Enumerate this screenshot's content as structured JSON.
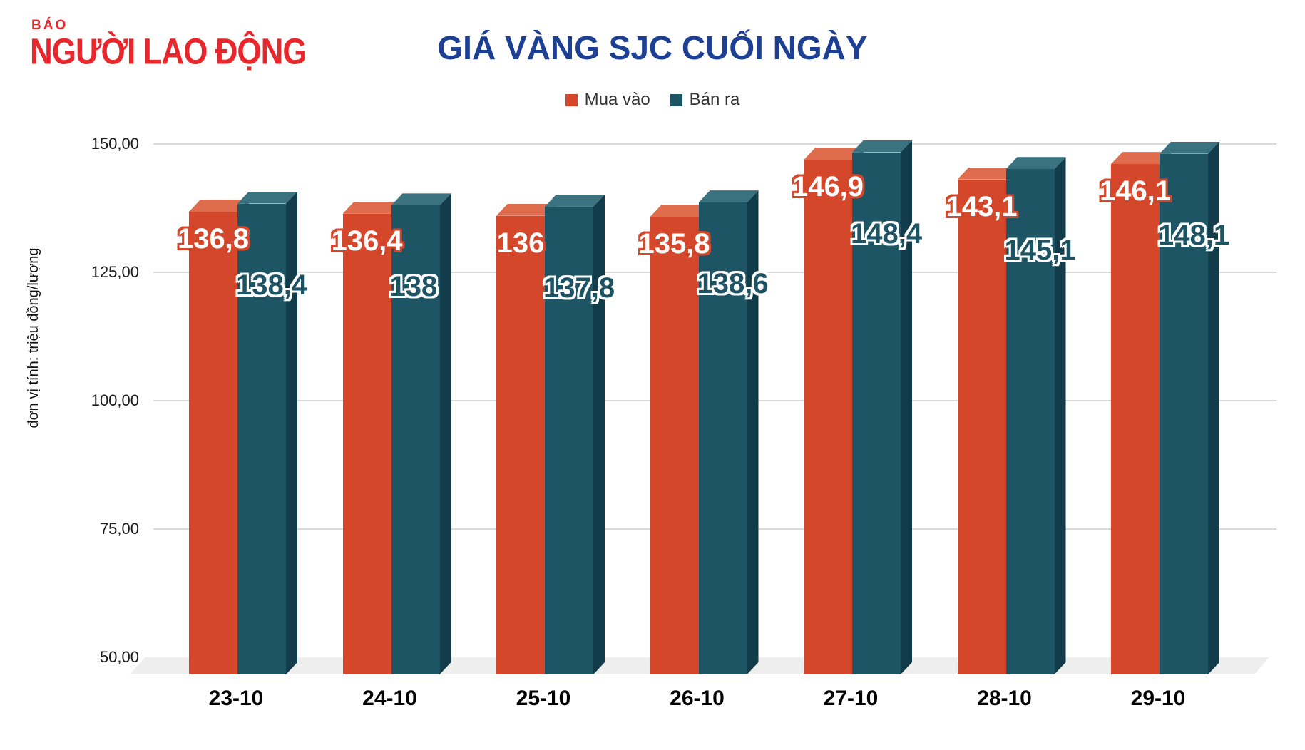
{
  "logo": {
    "tagline": "BÁO",
    "name": "NGƯỜI LAO ĐỘNG",
    "color": "#e8262b"
  },
  "title": {
    "text": "GIÁ VÀNG SJC CUỐI NGÀY",
    "color": "#1d3f94"
  },
  "chart_data": {
    "type": "bar",
    "style": "3d-column",
    "title": "GIÁ VÀNG SJC CUỐI NGÀY",
    "categories": [
      "23-10",
      "24-10",
      "25-10",
      "26-10",
      "27-10",
      "28-10",
      "29-10"
    ],
    "series": [
      {
        "name": "Mua vào",
        "values": [
          136.8,
          136.4,
          136.0,
          135.8,
          146.9,
          143.1,
          146.1
        ],
        "data_labels": [
          "136,8",
          "136,4",
          "136",
          "135,8",
          "146,9",
          "143,1",
          "146,1"
        ],
        "color_front": "#d5472b",
        "color_top": "#e06c4e",
        "color_side": "#a33a22"
      },
      {
        "name": "Bán ra",
        "values": [
          138.4,
          138.0,
          137.8,
          138.6,
          148.4,
          145.1,
          148.1
        ],
        "data_labels": [
          "138,4",
          "138",
          "137,8",
          "138,6",
          "148,4",
          "145,1",
          "148,1"
        ],
        "color_front": "#1e5565",
        "color_top": "#3b7280",
        "color_side": "#123c49"
      }
    ],
    "ylabel": "đơn vị tính: triệu đồng/lượng",
    "ylim": [
      50,
      150
    ],
    "yticks": [
      {
        "value": 150,
        "label": "150,00"
      },
      {
        "value": 125,
        "label": "125,00"
      },
      {
        "value": 100,
        "label": "100,00"
      },
      {
        "value": 75,
        "label": "75,00"
      },
      {
        "value": 50,
        "label": "50,00"
      }
    ],
    "grid": true,
    "legend_position": "top-center"
  }
}
